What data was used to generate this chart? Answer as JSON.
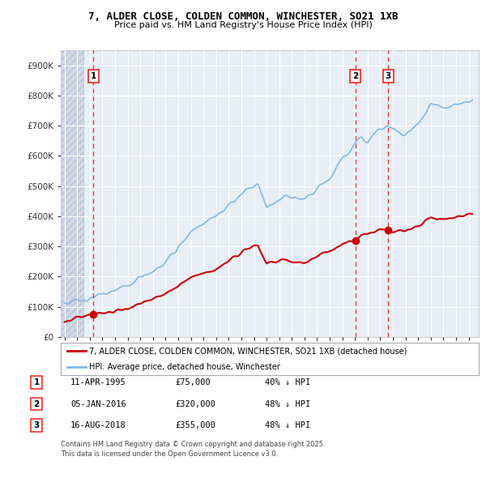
{
  "title_line1": "7, ALDER CLOSE, COLDEN COMMON, WINCHESTER, SO21 1XB",
  "title_line2": "Price paid vs. HM Land Registry's House Price Index (HPI)",
  "ylim": [
    0,
    950000
  ],
  "yticks": [
    0,
    100000,
    200000,
    300000,
    400000,
    500000,
    600000,
    700000,
    800000,
    900000
  ],
  "ytick_labels": [
    "£0",
    "£100K",
    "£200K",
    "£300K",
    "£400K",
    "£500K",
    "£600K",
    "£700K",
    "£800K",
    "£900K"
  ],
  "xlim_start": 1992.7,
  "xlim_end": 2025.8,
  "hpi_color": "#7fb8e8",
  "price_color": "#cc0000",
  "vline_color": "#ee3333",
  "bg_color": "#e8eef6",
  "hatch_region_end": 1994.5,
  "legend_label_price": "7, ALDER CLOSE, COLDEN COMMON, WINCHESTER, SO21 1XB (detached house)",
  "legend_label_hpi": "HPI: Average price, detached house, Winchester",
  "annotation1_date": "11-APR-1995",
  "annotation1_price": "£75,000",
  "annotation1_hpi": "40% ↓ HPI",
  "annotation1_year": 1995.27,
  "annotation1_value": 75000,
  "annotation2_date": "05-JAN-2016",
  "annotation2_price": "£320,000",
  "annotation2_hpi": "48% ↓ HPI",
  "annotation2_year": 2016.02,
  "annotation2_value": 320000,
  "annotation3_date": "16-AUG-2018",
  "annotation3_price": "£355,000",
  "annotation3_hpi": "48% ↓ HPI",
  "annotation3_year": 2018.62,
  "annotation3_value": 355000,
  "footer_line1": "Contains HM Land Registry data © Crown copyright and database right 2025.",
  "footer_line2": "This data is licensed under the Open Government Licence v3.0."
}
